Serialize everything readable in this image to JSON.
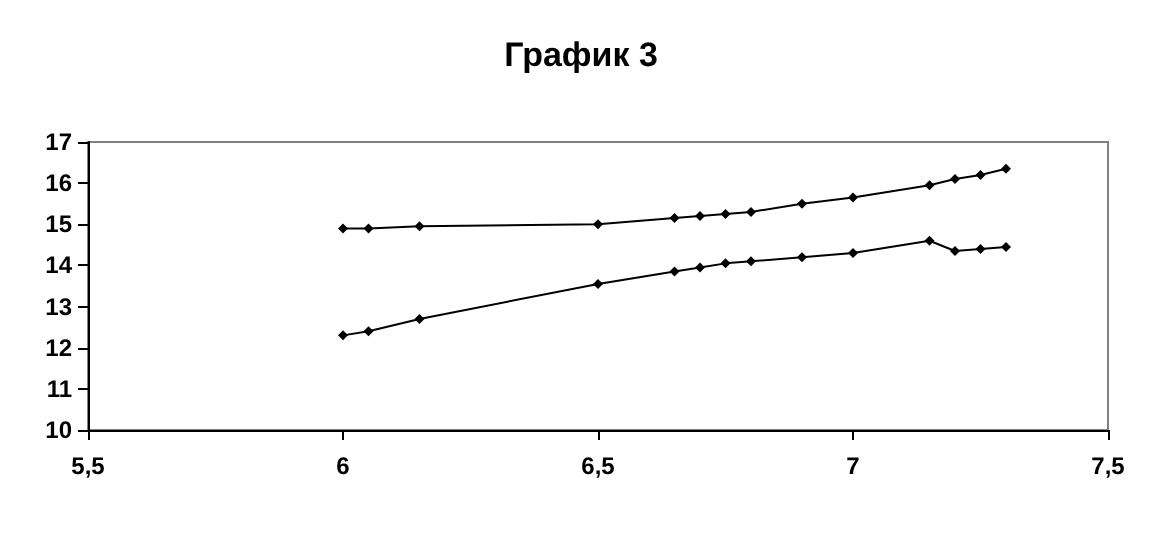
{
  "chart_data": {
    "type": "line",
    "title": "График 3",
    "x": [
      6,
      6.05,
      6.15,
      6.5,
      6.65,
      6.7,
      6.75,
      6.8,
      6.9,
      7,
      7.15,
      7.2,
      7.25,
      7.3
    ],
    "series": [
      {
        "color": "#000000",
        "values": [
          14.9,
          14.9,
          14.95,
          15,
          15.15,
          15.2,
          15.25,
          15.3,
          15.5,
          15.65,
          15.95,
          16.1,
          16.2,
          16.35
        ]
      },
      {
        "color": "#000000",
        "values": [
          12.3,
          12.4,
          12.7,
          13.55,
          13.85,
          13.95,
          14.05,
          14.1,
          14.2,
          14.3,
          14.6,
          14.35,
          14.4,
          14.45
        ]
      }
    ],
    "xlim": [
      5.5,
      7.5
    ],
    "xticks": [
      {
        "value": 5.5,
        "label": "5,5"
      },
      6,
      {
        "value": 6.5,
        "label": "6,5"
      },
      7,
      {
        "value": 7.5,
        "label": "7,5"
      }
    ],
    "ylim": [
      10,
      17
    ],
    "yticks": [
      10,
      11,
      12,
      13,
      14,
      15,
      16,
      17
    ],
    "grid": false,
    "marker": "diamond",
    "line_style": "solid"
  }
}
